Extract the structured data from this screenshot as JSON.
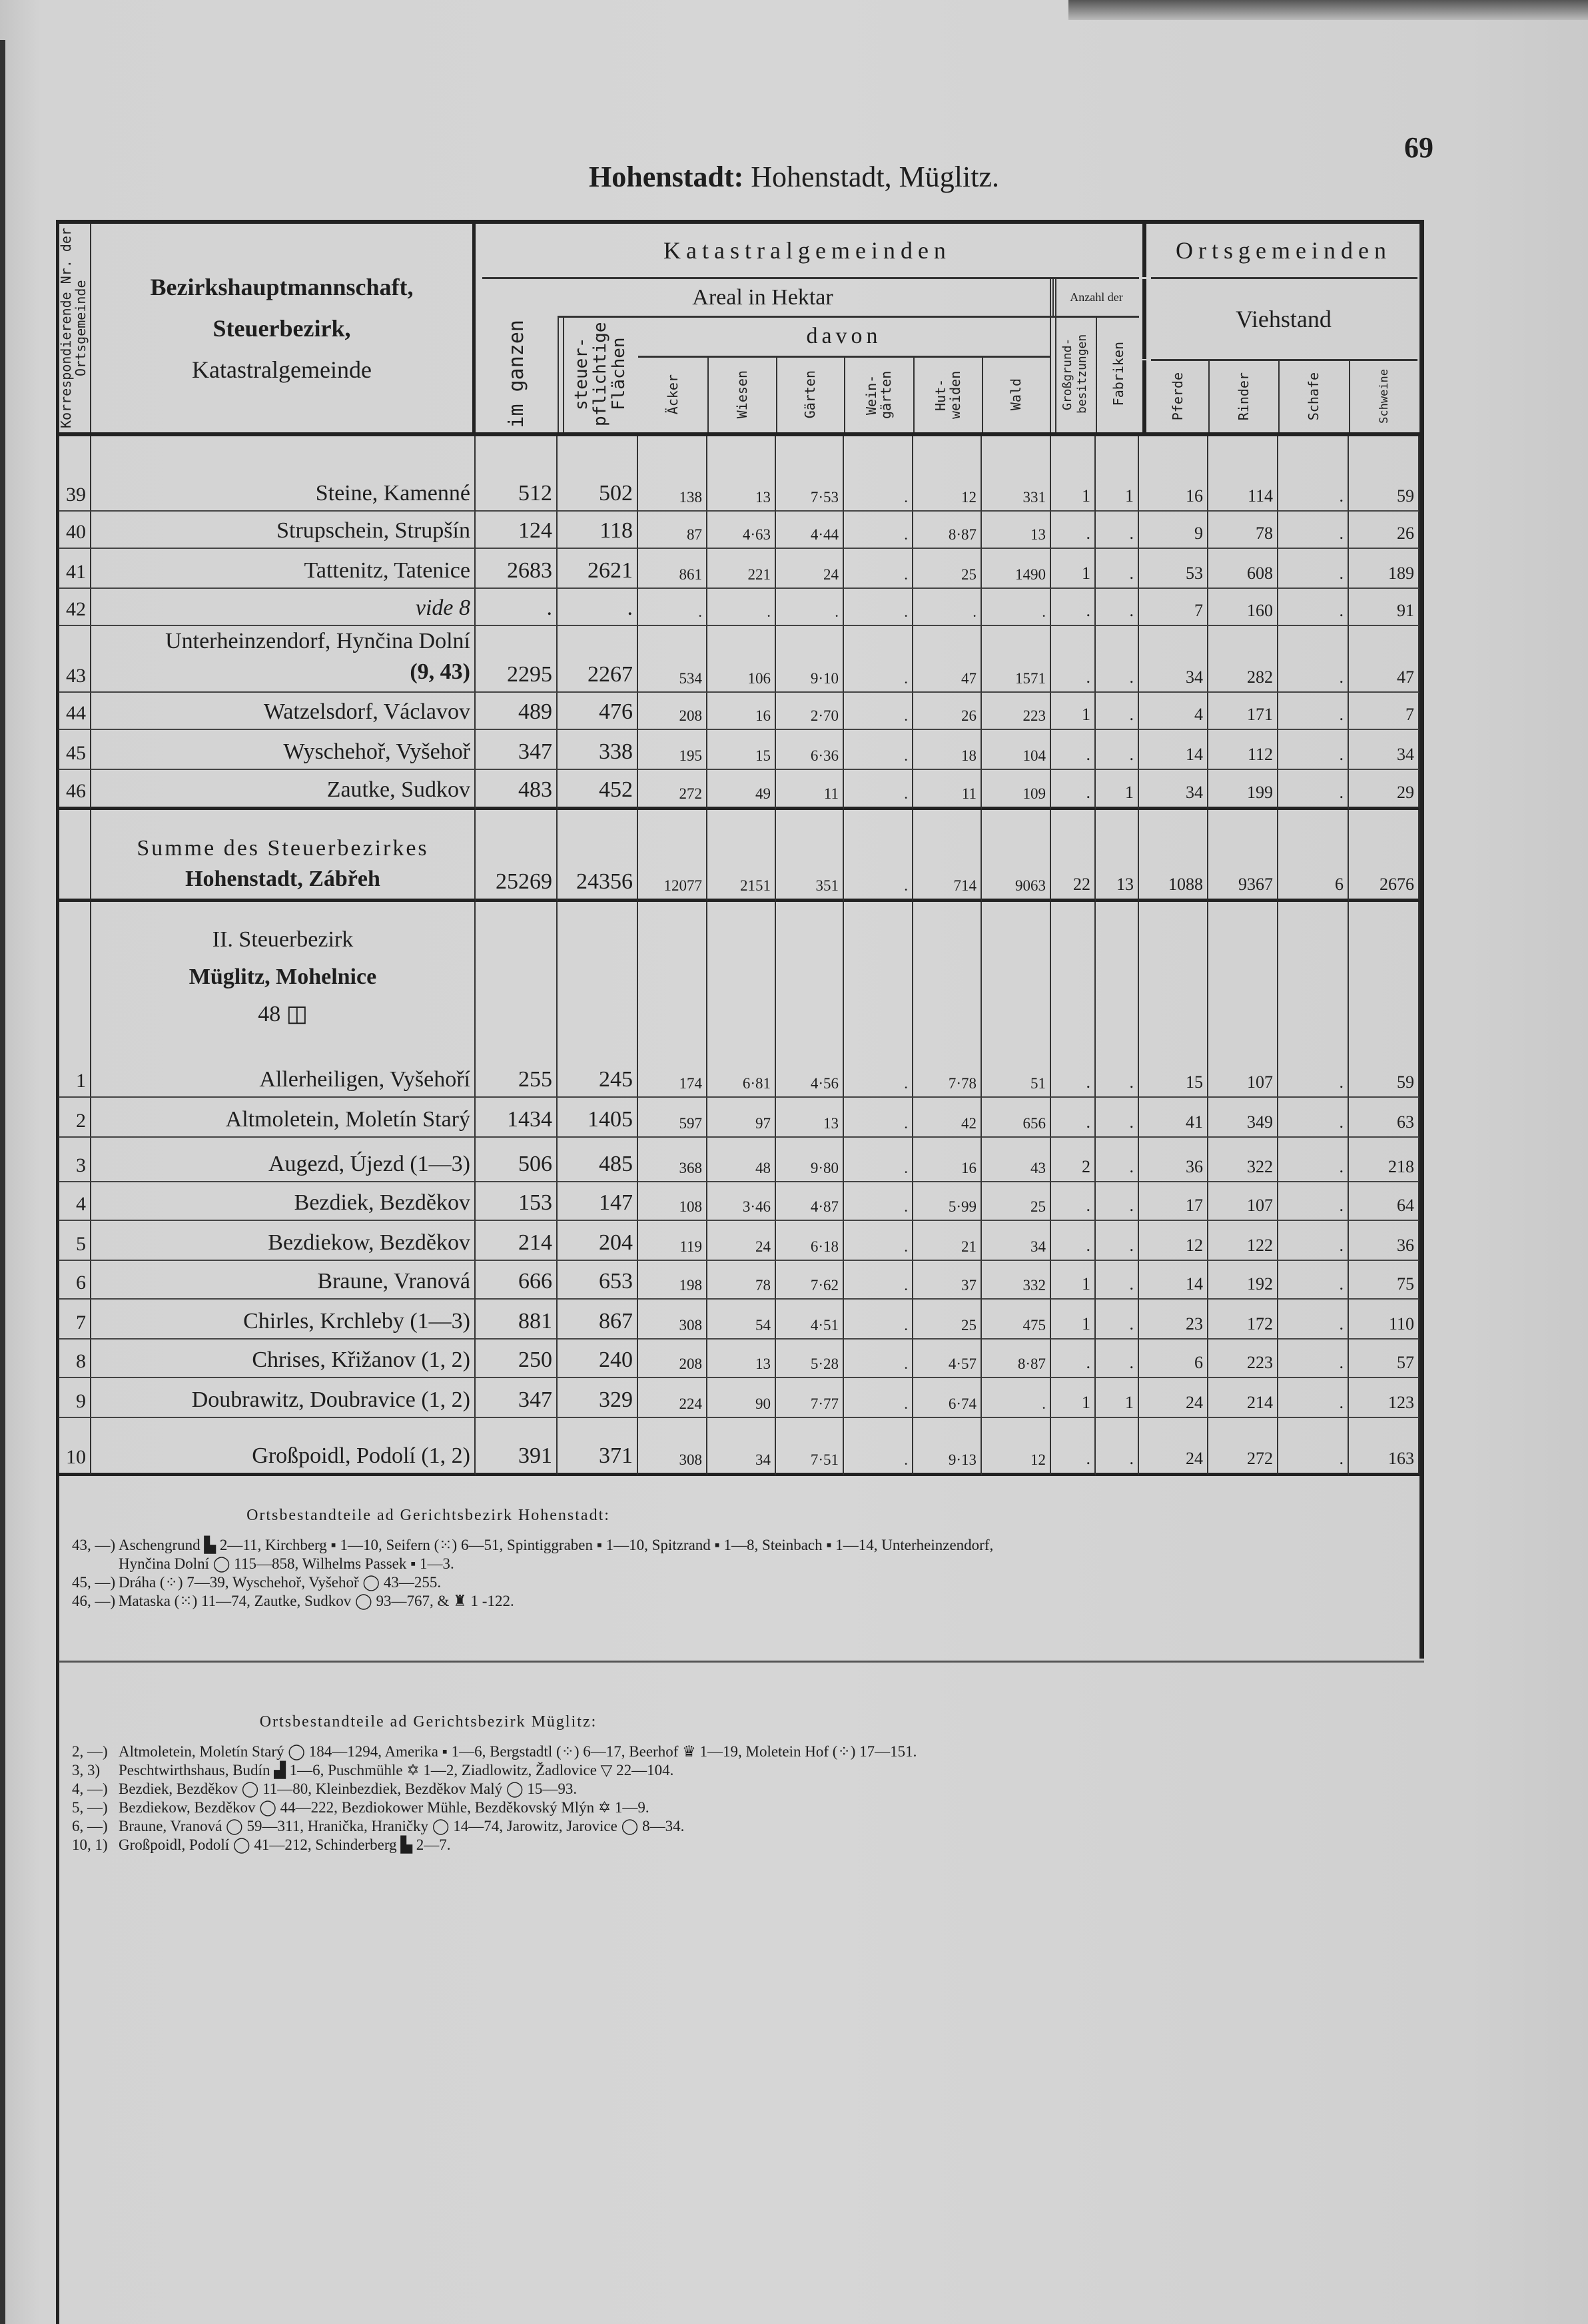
{
  "page": {
    "title_bold": "Hohenstadt:",
    "title_rest": " Hohenstadt, Müglitz.",
    "page_number": "69"
  },
  "header": {
    "nr_label": "Korrespondierende Nr. der Ortsgemeinde",
    "name_lines": [
      "Bezirkshauptmannschaft,",
      "Steuerbezirk,",
      "Katastralgemeinde"
    ],
    "katastral": "Katastralgemeinden",
    "areal": "Areal in Hektar",
    "davon": "davon",
    "anzahl": "Anzahl der",
    "ortsgemeinden": "Ortsgemeinden",
    "viehstand": "Viehstand",
    "im_ganzen": "im ganzen",
    "steuer": "steuer-pflichtige Flächen",
    "acker": "Äcker",
    "wiesen": "Wiesen",
    "garten": "Gärten",
    "weingarten": "Wein-gärten",
    "hutweiden": "Hut-weiden",
    "wald": "Wald",
    "grossgrund": "Großgrund-besitzungen",
    "fabriken": "Fabriken",
    "pferde": "Pferde",
    "rinder": "Rinder",
    "schafe": "Schafe",
    "schweine": "Schweine"
  },
  "rows_a": [
    {
      "nr": "39",
      "name": "Steine, Kamenné",
      "v": [
        "512",
        "502",
        "138",
        "13",
        "7·53",
        ".",
        "12",
        "331",
        "1",
        "1",
        "16",
        "114",
        ".",
        "59"
      ]
    },
    {
      "nr": "40",
      "name": "Strupschein, Strupšín",
      "v": [
        "124",
        "118",
        "87",
        "4·63",
        "4·44",
        ".",
        "8·87",
        "13",
        ".",
        ".",
        "9",
        "78",
        ".",
        "26"
      ]
    },
    {
      "nr": "41",
      "name": "Tattenitz, Tatenice",
      "v": [
        "2683",
        "2621",
        "861",
        "221",
        "24",
        ".",
        "25",
        "1490",
        "1",
        ".",
        "53",
        "608",
        ".",
        "189"
      ]
    },
    {
      "nr": "42",
      "name": "vide 8",
      "italic": true,
      "v": [
        ".",
        ".",
        ".",
        ".",
        ".",
        ".",
        ".",
        ".",
        ".",
        ".",
        "7",
        "160",
        ".",
        "91"
      ]
    },
    {
      "nr": "43",
      "name": "Unterheinzendorf, Hynčina Dolní",
      "name2": "(9, 43)",
      "v": [
        "2295",
        "2267",
        "534",
        "106",
        "9·10",
        ".",
        "47",
        "1571",
        ".",
        ".",
        "34",
        "282",
        ".",
        "47"
      ]
    },
    {
      "nr": "44",
      "name": "Watzelsdorf, Václavov",
      "v": [
        "489",
        "476",
        "208",
        "16",
        "2·70",
        ".",
        "26",
        "223",
        "1",
        ".",
        "4",
        "171",
        ".",
        "7"
      ]
    },
    {
      "nr": "45",
      "name": "Wyschehoř, Vyšehoř",
      "v": [
        "347",
        "338",
        "195",
        "15",
        "6·36",
        ".",
        "18",
        "104",
        ".",
        ".",
        "14",
        "112",
        ".",
        "34"
      ]
    },
    {
      "nr": "46",
      "name": "Zautke, Sudkov",
      "v": [
        "483",
        "452",
        "272",
        "49",
        "11",
        ".",
        "11",
        "109",
        ".",
        "1",
        "34",
        "199",
        ".",
        "29"
      ]
    }
  ],
  "sum_a": {
    "label1": "Summe des Steuerbezirkes",
    "label2": "Hohenstadt, Zábřeh",
    "v": [
      "25269",
      "24356",
      "12077",
      "2151",
      "351",
      ".",
      "714",
      "9063",
      "22",
      "13",
      "1088",
      "9367",
      "6",
      "2676"
    ]
  },
  "section_b": {
    "line1": "II. Steuerbezirk",
    "line2": "Müglitz, Mohelnice",
    "line3": "48 ◫"
  },
  "rows_b": [
    {
      "nr": "1",
      "name": "Allerheiligen, Vyšehoří",
      "v": [
        "255",
        "245",
        "174",
        "6·81",
        "4·56",
        ".",
        "7·78",
        "51",
        ".",
        ".",
        "15",
        "107",
        ".",
        "59"
      ]
    },
    {
      "nr": "2",
      "name": "Altmoletein, Moletín Starý",
      "v": [
        "1434",
        "1405",
        "597",
        "97",
        "13",
        ".",
        "42",
        "656",
        ".",
        ".",
        "41",
        "349",
        ".",
        "63"
      ]
    },
    {
      "nr": "3",
      "name": "Augezd, Újezd (1—3)",
      "v": [
        "506",
        "485",
        "368",
        "48",
        "9·80",
        ".",
        "16",
        "43",
        "2",
        ".",
        "36",
        "322",
        ".",
        "218"
      ]
    },
    {
      "nr": "4",
      "name": "Bezdiek, Bezděkov",
      "v": [
        "153",
        "147",
        "108",
        "3·46",
        "4·87",
        ".",
        "5·99",
        "25",
        ".",
        ".",
        "17",
        "107",
        ".",
        "64"
      ]
    },
    {
      "nr": "5",
      "name": "Bezdiekow, Bezděkov",
      "v": [
        "214",
        "204",
        "119",
        "24",
        "6·18",
        ".",
        "21",
        "34",
        ".",
        ".",
        "12",
        "122",
        ".",
        "36"
      ]
    },
    {
      "nr": "6",
      "name": "Braune, Vranová",
      "v": [
        "666",
        "653",
        "198",
        "78",
        "7·62",
        ".",
        "37",
        "332",
        "1",
        ".",
        "14",
        "192",
        ".",
        "75"
      ]
    },
    {
      "nr": "7",
      "name": "Chirles, Krchleby (1—3)",
      "v": [
        "881",
        "867",
        "308",
        "54",
        "4·51",
        ".",
        "25",
        "475",
        "1",
        ".",
        "23",
        "172",
        ".",
        "110"
      ]
    },
    {
      "nr": "8",
      "name": "Chrises, Křižanov (1, 2)",
      "v": [
        "250",
        "240",
        "208",
        "13",
        "5·28",
        ".",
        "4·57",
        "8·87",
        ".",
        ".",
        "6",
        "223",
        ".",
        "57"
      ]
    },
    {
      "nr": "9",
      "name": "Doubrawitz, Doubravice (1, 2)",
      "v": [
        "347",
        "329",
        "224",
        "90",
        "7·77",
        ".",
        "6·74",
        ".",
        "1",
        "1",
        "24",
        "214",
        ".",
        "123"
      ]
    },
    {
      "nr": "10",
      "name": "Großpoidl, Podolí (1, 2)",
      "v": [
        "391",
        "371",
        "308",
        "34",
        "7·51",
        ".",
        "9·13",
        "12",
        ".",
        ".",
        "24",
        "272",
        ".",
        "163"
      ]
    }
  ],
  "footnotes_a": {
    "heading": "Ortsbestandteile ad Gerichtsbezirk Hohenstadt:",
    "items": [
      {
        "key": "43, —)",
        "text": "Aschengrund ▙ 2—11, Kirchberg ▪ 1—10, Seifern (⁙) 6—51, Spintiggraben ▪ 1—10, Spitzrand ▪ 1—8, Steinbach ▪ 1—14, Unterheinzendorf,",
        "cont": "Hynčina Dolní ◯ 115—858, Wilhelms Passek ▪ 1—3."
      },
      {
        "key": "45, —)",
        "text": "Dráha (⁘) 7—39, Wyschehoř, Vyšehoř ◯ 43—255."
      },
      {
        "key": "46, —)",
        "text": "Mataska (⁙) 11—74, Zautke, Sudkov ◯ 93—767, & ♜ 1 -122."
      }
    ]
  },
  "footnotes_b": {
    "heading": "Ortsbestandteile ad Gerichtsbezirk Müglitz:",
    "items": [
      {
        "key": "2, —)",
        "text": "Altmoletein, Moletín Starý ◯ 184—1294, Amerika ▪ 1—6, Bergstadtl (⁘) 6—17, Beerhof ♛ 1—19, Moletein Hof (⁘) 17—151."
      },
      {
        "key": "3, 3)",
        "text": "Peschtwirthshaus, Budín ▟ 1—6, Puschmühle ✡ 1—2, Ziadlowitz, Žadlovice ▽ 22—104."
      },
      {
        "key": "4, —)",
        "text": "Bezdiek, Bezděkov ◯ 11—80, Kleinbezdiek, Bezděkov Malý ◯ 15—93."
      },
      {
        "key": "5, —)",
        "text": "Bezdiekow, Bezděkov ◯ 44—222, Bezdiokower Mühle, Bezděkovský Mlýn ✡ 1—9."
      },
      {
        "key": "6, —)",
        "text": "Braune, Vranová ◯ 59—311, Hranička, Hraničky ◯ 14—74, Jarowitz, Jarovice ◯ 8—34."
      },
      {
        "key": "10, 1)",
        "text": "Großpoidl, Podolí ◯ 41—212, Schinderberg ▙ 2—7."
      }
    ]
  }
}
